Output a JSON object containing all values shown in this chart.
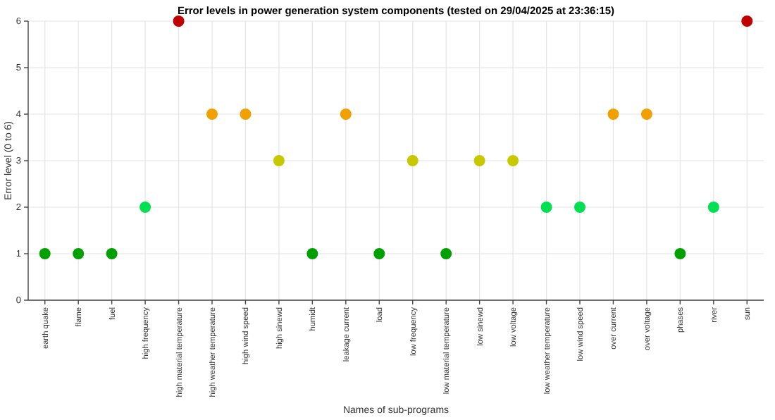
{
  "chart_data": {
    "type": "scatter",
    "title": "Error levels in power generation system components (tested on 29/04/2025 at 23:36:15)",
    "xlabel": "Names of sub-programs",
    "ylabel": "Error level (0 to 6)",
    "categories": [
      "earth quake",
      "flame",
      "fuel",
      "high frequency",
      "high material temperature",
      "high weather temperature",
      "high wind speed",
      "high sinewd",
      "humidt",
      "leakage current",
      "load",
      "low frequency",
      "low material temperature",
      "low sinewd",
      "low voltage",
      "low weather temperature",
      "low wind speed",
      "over current",
      "over voltage",
      "phases",
      "river",
      "sun"
    ],
    "values": [
      1,
      1,
      1,
      2,
      6,
      4,
      4,
      3,
      1,
      4,
      1,
      3,
      1,
      3,
      3,
      2,
      2,
      4,
      4,
      1,
      2,
      6
    ],
    "colors": [
      "#00a000",
      "#00a000",
      "#00a000",
      "#00e050",
      "#c00000",
      "#f0a000",
      "#f0a000",
      "#c8c800",
      "#00a000",
      "#f0a000",
      "#00a000",
      "#c8c800",
      "#00a000",
      "#c8c800",
      "#c8c800",
      "#00e050",
      "#00e050",
      "#f0a000",
      "#f0a000",
      "#00a000",
      "#00e050",
      "#c00000"
    ],
    "ylim": [
      0,
      6
    ],
    "yticks": [
      0,
      1,
      2,
      3,
      4,
      5,
      6
    ],
    "grid": true,
    "marker": "circle"
  }
}
